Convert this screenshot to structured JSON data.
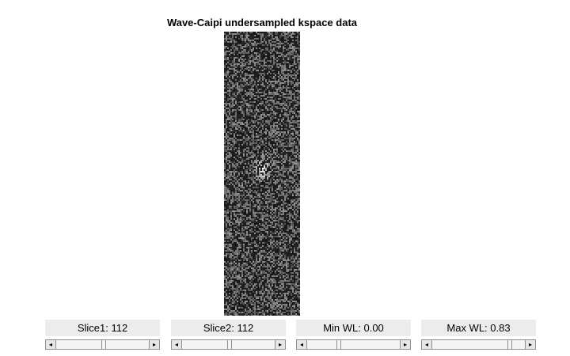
{
  "figure": {
    "title": "Wave-Caipi undersampled kspace data"
  },
  "controls": [
    {
      "label": "Slice1: 112",
      "value": 0.5
    },
    {
      "label": "Slice2: 112",
      "value": 0.5
    },
    {
      "label": "Min WL: 0.00",
      "value": 0.33
    },
    {
      "label": "Max WL: 0.83",
      "value": 0.83
    }
  ],
  "icons": {
    "left_arrow": "◂",
    "right_arrow": "▸"
  }
}
